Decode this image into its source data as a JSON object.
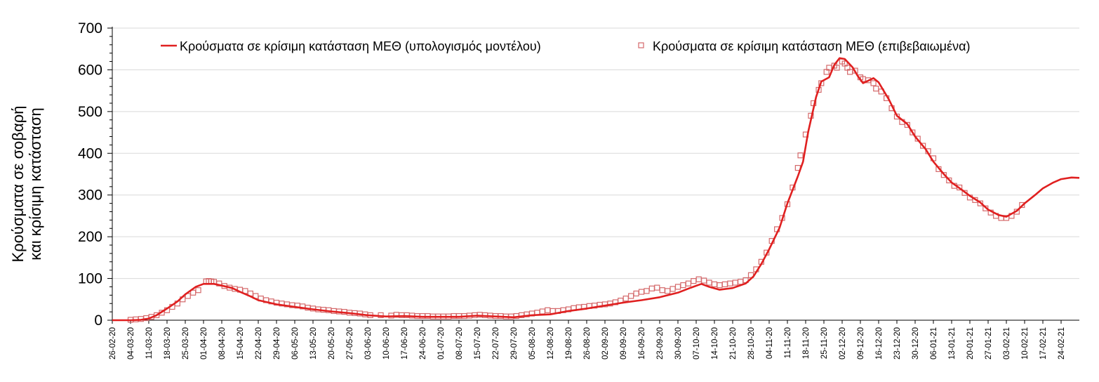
{
  "chart_data": {
    "type": "line",
    "title": "",
    "ylabel_lines": [
      "Κρούσματα σε σοβαρή",
      "και κρίσιμη κατάσταση"
    ],
    "xlabel": "",
    "ylim": [
      0,
      700
    ],
    "yticks": [
      0,
      100,
      200,
      300,
      400,
      500,
      600,
      700
    ],
    "x_start": "2020-02-26",
    "x_end": "2021-03-03",
    "xtick_labels": [
      "26-02-20",
      "04-03-20",
      "11-03-20",
      "18-03-20",
      "25-03-20",
      "01-04-20",
      "08-04-20",
      "15-04-20",
      "22-04-20",
      "29-04-20",
      "06-05-20",
      "13-05-20",
      "20-05-20",
      "27-05-20",
      "03-06-20",
      "10-06-20",
      "17-06-20",
      "24-06-20",
      "01-07-20",
      "08-07-20",
      "15-07-20",
      "22-07-20",
      "29-07-20",
      "05-08-20",
      "12-08-20",
      "19-08-20",
      "26-08-20",
      "02-09-20",
      "09-09-20",
      "16-09-20",
      "23-09-20",
      "30-09-20",
      "07-10-20",
      "14-10-20",
      "21-10-20",
      "28-10-20",
      "04-11-20",
      "11-11-20",
      "18-11-20",
      "25-11-20",
      "02-12-20",
      "09-12-20",
      "16-12-20",
      "23-12-20",
      "30-12-20",
      "06-01-21",
      "13-01-21",
      "20-01-21",
      "27-01-21",
      "03-02-21",
      "10-02-21",
      "17-02-21",
      "24-02-21"
    ],
    "grid": true,
    "legend_position": "top",
    "series": [
      {
        "name": "Κρούσματα σε κρίσιμη κατάσταση ΜΕΘ (υπολογισμός μοντέλου)",
        "kind": "line",
        "color": "#e02020",
        "points": [
          [
            "2020-02-26",
            0
          ],
          [
            "2020-03-04",
            0
          ],
          [
            "2020-03-08",
            1
          ],
          [
            "2020-03-11",
            4
          ],
          [
            "2020-03-14",
            12
          ],
          [
            "2020-03-18",
            28
          ],
          [
            "2020-03-22",
            45
          ],
          [
            "2020-03-25",
            62
          ],
          [
            "2020-03-29",
            80
          ],
          [
            "2020-04-01",
            87
          ],
          [
            "2020-04-05",
            87
          ],
          [
            "2020-04-08",
            83
          ],
          [
            "2020-04-12",
            77
          ],
          [
            "2020-04-15",
            68
          ],
          [
            "2020-04-19",
            57
          ],
          [
            "2020-04-22",
            48
          ],
          [
            "2020-04-29",
            38
          ],
          [
            "2020-05-06",
            32
          ],
          [
            "2020-05-13",
            26
          ],
          [
            "2020-05-20",
            21
          ],
          [
            "2020-05-27",
            17
          ],
          [
            "2020-06-03",
            12
          ],
          [
            "2020-06-10",
            9
          ],
          [
            "2020-06-17",
            10
          ],
          [
            "2020-06-24",
            8
          ],
          [
            "2020-07-01",
            8
          ],
          [
            "2020-07-08",
            8
          ],
          [
            "2020-07-15",
            11
          ],
          [
            "2020-07-22",
            9
          ],
          [
            "2020-07-29",
            7
          ],
          [
            "2020-08-05",
            12
          ],
          [
            "2020-08-12",
            14
          ],
          [
            "2020-08-19",
            22
          ],
          [
            "2020-08-26",
            28
          ],
          [
            "2020-09-02",
            35
          ],
          [
            "2020-09-09",
            42
          ],
          [
            "2020-09-16",
            48
          ],
          [
            "2020-09-23",
            55
          ],
          [
            "2020-09-30",
            66
          ],
          [
            "2020-10-05",
            78
          ],
          [
            "2020-10-09",
            87
          ],
          [
            "2020-10-12",
            80
          ],
          [
            "2020-10-16",
            73
          ],
          [
            "2020-10-21",
            77
          ],
          [
            "2020-10-26",
            88
          ],
          [
            "2020-10-29",
            105
          ],
          [
            "2020-11-01",
            135
          ],
          [
            "2020-11-04",
            170
          ],
          [
            "2020-11-08",
            222
          ],
          [
            "2020-11-11",
            280
          ],
          [
            "2020-11-15",
            345
          ],
          [
            "2020-11-17",
            380
          ],
          [
            "2020-11-19",
            452
          ],
          [
            "2020-11-22",
            535
          ],
          [
            "2020-11-24",
            572
          ],
          [
            "2020-11-27",
            582
          ],
          [
            "2020-11-29",
            612
          ],
          [
            "2020-12-01",
            628
          ],
          [
            "2020-12-03",
            626
          ],
          [
            "2020-12-06",
            606
          ],
          [
            "2020-12-08",
            585
          ],
          [
            "2020-12-10",
            568
          ],
          [
            "2020-12-12",
            574
          ],
          [
            "2020-12-14",
            580
          ],
          [
            "2020-12-16",
            570
          ],
          [
            "2020-12-20",
            528
          ],
          [
            "2020-12-23",
            490
          ],
          [
            "2020-12-27",
            470
          ],
          [
            "2020-12-30",
            440
          ],
          [
            "2021-01-03",
            410
          ],
          [
            "2021-01-06",
            380
          ],
          [
            "2021-01-10",
            350
          ],
          [
            "2021-01-13",
            330
          ],
          [
            "2021-01-17",
            312
          ],
          [
            "2021-01-20",
            298
          ],
          [
            "2021-01-24",
            282
          ],
          [
            "2021-01-27",
            265
          ],
          [
            "2021-01-31",
            252
          ],
          [
            "2021-02-03",
            248
          ],
          [
            "2021-02-07",
            262
          ],
          [
            "2021-02-10",
            280
          ],
          [
            "2021-02-14",
            300
          ],
          [
            "2021-02-17",
            316
          ],
          [
            "2021-02-21",
            330
          ],
          [
            "2021-02-24",
            338
          ],
          [
            "2021-02-28",
            342
          ],
          [
            "2021-03-03",
            341
          ]
        ]
      },
      {
        "name": "Κρούσματα σε κρίσιμη κατάσταση ΜΕΘ (επιβεβαιωμένα)",
        "kind": "scatter",
        "color": "#e02020",
        "marker": "square-open",
        "points": [
          [
            "2020-03-04",
            1
          ],
          [
            "2020-03-06",
            2
          ],
          [
            "2020-03-08",
            3
          ],
          [
            "2020-03-10",
            5
          ],
          [
            "2020-03-12",
            8
          ],
          [
            "2020-03-14",
            12
          ],
          [
            "2020-03-16",
            18
          ],
          [
            "2020-03-18",
            24
          ],
          [
            "2020-03-20",
            32
          ],
          [
            "2020-03-22",
            40
          ],
          [
            "2020-03-24",
            50
          ],
          [
            "2020-03-26",
            58
          ],
          [
            "2020-03-28",
            66
          ],
          [
            "2020-03-30",
            72
          ],
          [
            "2020-04-02",
            93
          ],
          [
            "2020-04-03",
            94
          ],
          [
            "2020-04-04",
            93
          ],
          [
            "2020-04-05",
            92
          ],
          [
            "2020-04-07",
            88
          ],
          [
            "2020-04-09",
            82
          ],
          [
            "2020-04-11",
            78
          ],
          [
            "2020-04-13",
            75
          ],
          [
            "2020-04-15",
            73
          ],
          [
            "2020-04-17",
            70
          ],
          [
            "2020-04-19",
            64
          ],
          [
            "2020-04-21",
            58
          ],
          [
            "2020-04-23",
            52
          ],
          [
            "2020-04-25",
            48
          ],
          [
            "2020-04-27",
            45
          ],
          [
            "2020-04-29",
            42
          ],
          [
            "2020-05-01",
            40
          ],
          [
            "2020-05-03",
            38
          ],
          [
            "2020-05-05",
            36
          ],
          [
            "2020-05-07",
            35
          ],
          [
            "2020-05-09",
            33
          ],
          [
            "2020-05-11",
            30
          ],
          [
            "2020-05-13",
            28
          ],
          [
            "2020-05-15",
            26
          ],
          [
            "2020-05-17",
            25
          ],
          [
            "2020-05-19",
            24
          ],
          [
            "2020-05-21",
            22
          ],
          [
            "2020-05-23",
            21
          ],
          [
            "2020-05-25",
            20
          ],
          [
            "2020-05-27",
            18
          ],
          [
            "2020-05-29",
            17
          ],
          [
            "2020-05-31",
            16
          ],
          [
            "2020-06-02",
            14
          ],
          [
            "2020-06-04",
            12
          ],
          [
            "2020-06-08",
            12
          ],
          [
            "2020-06-12",
            11
          ],
          [
            "2020-06-14",
            13
          ],
          [
            "2020-06-16",
            12
          ],
          [
            "2020-06-18",
            12
          ],
          [
            "2020-06-20",
            11
          ],
          [
            "2020-06-22",
            10
          ],
          [
            "2020-06-24",
            10
          ],
          [
            "2020-06-26",
            10
          ],
          [
            "2020-06-28",
            9
          ],
          [
            "2020-06-30",
            9
          ],
          [
            "2020-07-02",
            9
          ],
          [
            "2020-07-04",
            9
          ],
          [
            "2020-07-06",
            10
          ],
          [
            "2020-07-08",
            10
          ],
          [
            "2020-07-10",
            10
          ],
          [
            "2020-07-12",
            11
          ],
          [
            "2020-07-14",
            12
          ],
          [
            "2020-07-16",
            13
          ],
          [
            "2020-07-18",
            12
          ],
          [
            "2020-07-20",
            11
          ],
          [
            "2020-07-22",
            10
          ],
          [
            "2020-07-24",
            10
          ],
          [
            "2020-07-26",
            9
          ],
          [
            "2020-07-28",
            9
          ],
          [
            "2020-07-30",
            10
          ],
          [
            "2020-08-01",
            12
          ],
          [
            "2020-08-03",
            14
          ],
          [
            "2020-08-05",
            16
          ],
          [
            "2020-08-07",
            18
          ],
          [
            "2020-08-09",
            21
          ],
          [
            "2020-08-11",
            24
          ],
          [
            "2020-08-13",
            22
          ],
          [
            "2020-08-15",
            22
          ],
          [
            "2020-08-17",
            24
          ],
          [
            "2020-08-19",
            26
          ],
          [
            "2020-08-21",
            29
          ],
          [
            "2020-08-23",
            31
          ],
          [
            "2020-08-25",
            32
          ],
          [
            "2020-08-27",
            34
          ],
          [
            "2020-08-29",
            35
          ],
          [
            "2020-08-31",
            37
          ],
          [
            "2020-09-02",
            38
          ],
          [
            "2020-09-04",
            40
          ],
          [
            "2020-09-06",
            43
          ],
          [
            "2020-09-08",
            47
          ],
          [
            "2020-09-10",
            52
          ],
          [
            "2020-09-12",
            58
          ],
          [
            "2020-09-14",
            64
          ],
          [
            "2020-09-16",
            68
          ],
          [
            "2020-09-18",
            70
          ],
          [
            "2020-09-20",
            76
          ],
          [
            "2020-09-22",
            78
          ],
          [
            "2020-09-24",
            72
          ],
          [
            "2020-09-26",
            70
          ],
          [
            "2020-09-28",
            75
          ],
          [
            "2020-09-30",
            80
          ],
          [
            "2020-10-02",
            84
          ],
          [
            "2020-10-04",
            88
          ],
          [
            "2020-10-06",
            94
          ],
          [
            "2020-10-08",
            98
          ],
          [
            "2020-10-10",
            95
          ],
          [
            "2020-10-12",
            90
          ],
          [
            "2020-10-14",
            86
          ],
          [
            "2020-10-16",
            84
          ],
          [
            "2020-10-18",
            86
          ],
          [
            "2020-10-20",
            88
          ],
          [
            "2020-10-22",
            90
          ],
          [
            "2020-10-24",
            92
          ],
          [
            "2020-10-26",
            96
          ],
          [
            "2020-10-28",
            108
          ],
          [
            "2020-10-30",
            122
          ],
          [
            "2020-11-01",
            140
          ],
          [
            "2020-11-03",
            162
          ],
          [
            "2020-11-05",
            190
          ],
          [
            "2020-11-07",
            218
          ],
          [
            "2020-11-09",
            245
          ],
          [
            "2020-11-11",
            278
          ],
          [
            "2020-11-13",
            318
          ],
          [
            "2020-11-15",
            365
          ],
          [
            "2020-11-16",
            395
          ],
          [
            "2020-11-18",
            445
          ],
          [
            "2020-11-20",
            490
          ],
          [
            "2020-11-21",
            520
          ],
          [
            "2020-11-23",
            552
          ],
          [
            "2020-11-24",
            568
          ],
          [
            "2020-11-26",
            595
          ],
          [
            "2020-11-27",
            605
          ],
          [
            "2020-11-29",
            610
          ],
          [
            "2020-11-30",
            605
          ],
          [
            "2020-12-02",
            620
          ],
          [
            "2020-12-03",
            615
          ],
          [
            "2020-12-04",
            605
          ],
          [
            "2020-12-05",
            595
          ],
          [
            "2020-12-07",
            598
          ],
          [
            "2020-12-09",
            582
          ],
          [
            "2020-12-10",
            578
          ],
          [
            "2020-12-12",
            575
          ],
          [
            "2020-12-14",
            568
          ],
          [
            "2020-12-15",
            555
          ],
          [
            "2020-12-17",
            548
          ],
          [
            "2020-12-19",
            532
          ],
          [
            "2020-12-21",
            508
          ],
          [
            "2020-12-23",
            488
          ],
          [
            "2020-12-25",
            475
          ],
          [
            "2020-12-27",
            468
          ],
          [
            "2020-12-29",
            450
          ],
          [
            "2020-12-31",
            435
          ],
          [
            "2021-01-02",
            418
          ],
          [
            "2021-01-04",
            405
          ],
          [
            "2021-01-06",
            388
          ],
          [
            "2021-01-08",
            362
          ],
          [
            "2021-01-10",
            348
          ],
          [
            "2021-01-12",
            335
          ],
          [
            "2021-01-14",
            322
          ],
          [
            "2021-01-16",
            318
          ],
          [
            "2021-01-18",
            305
          ],
          [
            "2021-01-20",
            294
          ],
          [
            "2021-01-22",
            288
          ],
          [
            "2021-01-24",
            280
          ],
          [
            "2021-01-26",
            268
          ],
          [
            "2021-01-28",
            258
          ],
          [
            "2021-01-30",
            250
          ],
          [
            "2021-02-01",
            245
          ],
          [
            "2021-02-03",
            245
          ],
          [
            "2021-02-05",
            250
          ],
          [
            "2021-02-07",
            260
          ],
          [
            "2021-02-09",
            276
          ]
        ]
      }
    ]
  }
}
